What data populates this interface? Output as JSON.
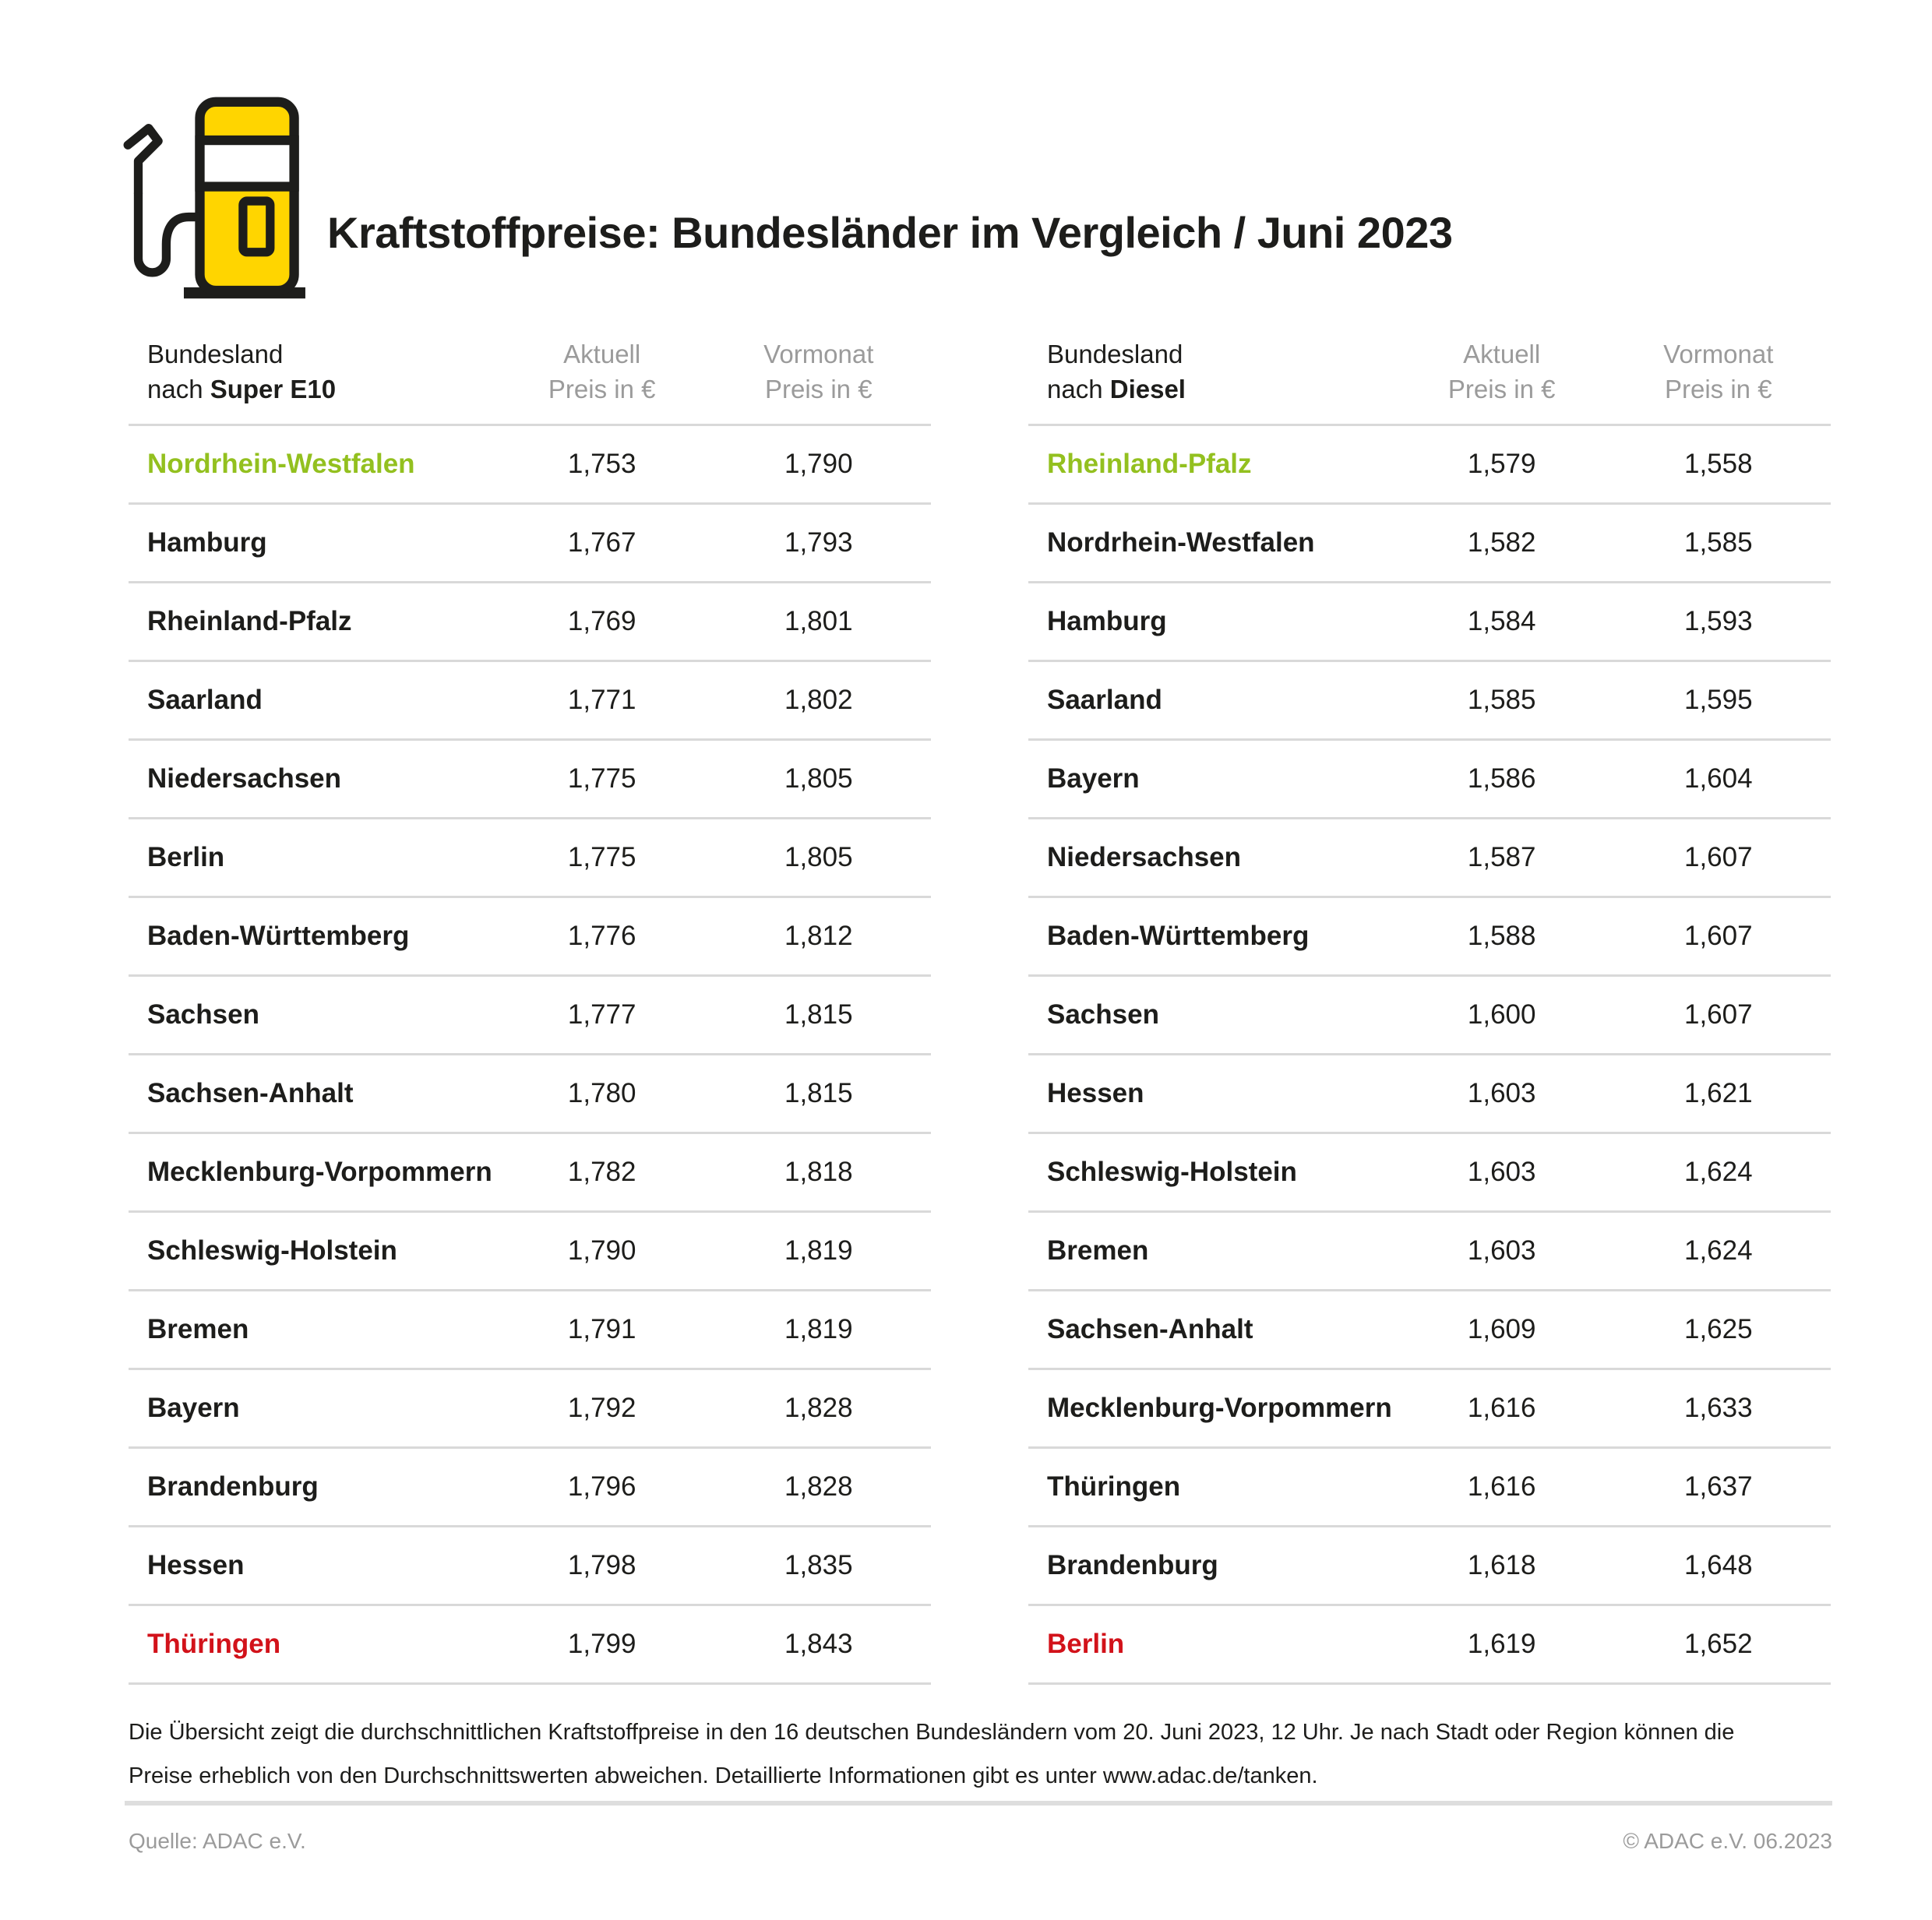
{
  "header": {
    "title": "Kraftstoffpreise: Bundesländer im Vergleich / Juni 2023",
    "icon": "fuel-pump-icon"
  },
  "colors": {
    "green": "#93c01f",
    "red": "#d2121a",
    "gray": "#9b9b9b",
    "divider": "#d9d9d9",
    "divider2": "#dedede",
    "yellow": "#ffd500",
    "ink": "#1d1d1b"
  },
  "tables": [
    {
      "head": {
        "col1_line1": "Bundesland",
        "col1_line2_prefix": "nach ",
        "col1_line2_bold": "Super E10",
        "col2_line1": "Aktuell",
        "col2_line2": "Preis in €",
        "col3_line1": "Vormonat",
        "col3_line2": "Preis in €"
      },
      "rows": [
        {
          "state": "Nordrhein-Westfalen",
          "aktuell": "1,753",
          "vormonat": "1,790",
          "color": "green"
        },
        {
          "state": "Hamburg",
          "aktuell": "1,767",
          "vormonat": "1,793",
          "color": ""
        },
        {
          "state": "Rheinland-Pfalz",
          "aktuell": "1,769",
          "vormonat": "1,801",
          "color": ""
        },
        {
          "state": "Saarland",
          "aktuell": "1,771",
          "vormonat": "1,802",
          "color": ""
        },
        {
          "state": "Niedersachsen",
          "aktuell": "1,775",
          "vormonat": "1,805",
          "color": ""
        },
        {
          "state": "Berlin",
          "aktuell": "1,775",
          "vormonat": "1,805",
          "color": ""
        },
        {
          "state": "Baden-Württemberg",
          "aktuell": "1,776",
          "vormonat": "1,812",
          "color": ""
        },
        {
          "state": "Sachsen",
          "aktuell": "1,777",
          "vormonat": "1,815",
          "color": ""
        },
        {
          "state": "Sachsen-Anhalt",
          "aktuell": "1,780",
          "vormonat": "1,815",
          "color": ""
        },
        {
          "state": "Mecklenburg-Vorpommern",
          "aktuell": "1,782",
          "vormonat": "1,818",
          "color": ""
        },
        {
          "state": "Schleswig-Holstein",
          "aktuell": "1,790",
          "vormonat": "1,819",
          "color": ""
        },
        {
          "state": "Bremen",
          "aktuell": "1,791",
          "vormonat": "1,819",
          "color": ""
        },
        {
          "state": "Bayern",
          "aktuell": "1,792",
          "vormonat": "1,828",
          "color": ""
        },
        {
          "state": "Brandenburg",
          "aktuell": "1,796",
          "vormonat": "1,828",
          "color": ""
        },
        {
          "state": "Hessen",
          "aktuell": "1,798",
          "vormonat": "1,835",
          "color": ""
        },
        {
          "state": "Thüringen",
          "aktuell": "1,799",
          "vormonat": "1,843",
          "color": "red"
        }
      ]
    },
    {
      "head": {
        "col1_line1": "Bundesland",
        "col1_line2_prefix": "nach ",
        "col1_line2_bold": "Diesel",
        "col2_line1": "Aktuell",
        "col2_line2": "Preis in €",
        "col3_line1": "Vormonat",
        "col3_line2": "Preis in €"
      },
      "rows": [
        {
          "state": "Rheinland-Pfalz",
          "aktuell": "1,579",
          "vormonat": "1,558",
          "color": "green"
        },
        {
          "state": "Nordrhein-Westfalen",
          "aktuell": "1,582",
          "vormonat": "1,585",
          "color": ""
        },
        {
          "state": "Hamburg",
          "aktuell": "1,584",
          "vormonat": "1,593",
          "color": ""
        },
        {
          "state": "Saarland",
          "aktuell": "1,585",
          "vormonat": "1,595",
          "color": ""
        },
        {
          "state": "Bayern",
          "aktuell": "1,586",
          "vormonat": "1,604",
          "color": ""
        },
        {
          "state": "Niedersachsen",
          "aktuell": "1,587",
          "vormonat": "1,607",
          "color": ""
        },
        {
          "state": "Baden-Württemberg",
          "aktuell": "1,588",
          "vormonat": "1,607",
          "color": ""
        },
        {
          "state": "Sachsen",
          "aktuell": "1,600",
          "vormonat": "1,607",
          "color": ""
        },
        {
          "state": "Hessen",
          "aktuell": "1,603",
          "vormonat": "1,621",
          "color": ""
        },
        {
          "state": "Schleswig-Holstein",
          "aktuell": "1,603",
          "vormonat": "1,624",
          "color": ""
        },
        {
          "state": "Bremen",
          "aktuell": "1,603",
          "vormonat": "1,624",
          "color": ""
        },
        {
          "state": "Sachsen-Anhalt",
          "aktuell": "1,609",
          "vormonat": "1,625",
          "color": ""
        },
        {
          "state": "Mecklenburg-Vorpommern",
          "aktuell": "1,616",
          "vormonat": "1,633",
          "color": ""
        },
        {
          "state": "Thüringen",
          "aktuell": "1,616",
          "vormonat": "1,637",
          "color": ""
        },
        {
          "state": "Brandenburg",
          "aktuell": "1,618",
          "vormonat": "1,648",
          "color": ""
        },
        {
          "state": "Berlin",
          "aktuell": "1,619",
          "vormonat": "1,652",
          "color": "red"
        }
      ]
    }
  ],
  "chart_data": [
    {
      "type": "table",
      "title": "Bundesland nach Super E10",
      "columns": [
        "Bundesland",
        "Aktuell Preis in €",
        "Vormonat Preis in €"
      ],
      "rows": [
        [
          "Nordrhein-Westfalen",
          "1,753",
          "1,790"
        ],
        [
          "Hamburg",
          "1,767",
          "1,793"
        ],
        [
          "Rheinland-Pfalz",
          "1,769",
          "1,801"
        ],
        [
          "Saarland",
          "1,771",
          "1,802"
        ],
        [
          "Niedersachsen",
          "1,775",
          "1,805"
        ],
        [
          "Berlin",
          "1,775",
          "1,805"
        ],
        [
          "Baden-Württemberg",
          "1,776",
          "1,812"
        ],
        [
          "Sachsen",
          "1,777",
          "1,815"
        ],
        [
          "Sachsen-Anhalt",
          "1,780",
          "1,815"
        ],
        [
          "Mecklenburg-Vorpommern",
          "1,782",
          "1,818"
        ],
        [
          "Schleswig-Holstein",
          "1,790",
          "1,819"
        ],
        [
          "Bremen",
          "1,791",
          "1,819"
        ],
        [
          "Bayern",
          "1,792",
          "1,828"
        ],
        [
          "Brandenburg",
          "1,796",
          "1,828"
        ],
        [
          "Hessen",
          "1,798",
          "1,835"
        ],
        [
          "Thüringen",
          "1,799",
          "1,843"
        ]
      ],
      "highlight_green_cheapest": "Nordrhein-Westfalen",
      "highlight_red_most_expensive": "Thüringen"
    },
    {
      "type": "table",
      "title": "Bundesland nach Diesel",
      "columns": [
        "Bundesland",
        "Aktuell Preis in €",
        "Vormonat Preis in €"
      ],
      "rows": [
        [
          "Rheinland-Pfalz",
          "1,579",
          "1,558"
        ],
        [
          "Nordrhein-Westfalen",
          "1,582",
          "1,585"
        ],
        [
          "Hamburg",
          "1,584",
          "1,593"
        ],
        [
          "Saarland",
          "1,585",
          "1,595"
        ],
        [
          "Bayern",
          "1,586",
          "1,604"
        ],
        [
          "Niedersachsen",
          "1,587",
          "1,607"
        ],
        [
          "Baden-Württemberg",
          "1,588",
          "1,607"
        ],
        [
          "Sachsen",
          "1,600",
          "1,607"
        ],
        [
          "Hessen",
          "1,603",
          "1,621"
        ],
        [
          "Schleswig-Holstein",
          "1,603",
          "1,624"
        ],
        [
          "Bremen",
          "1,603",
          "1,624"
        ],
        [
          "Sachsen-Anhalt",
          "1,609",
          "1,625"
        ],
        [
          "Mecklenburg-Vorpommern",
          "1,616",
          "1,633"
        ],
        [
          "Thüringen",
          "1,616",
          "1,637"
        ],
        [
          "Brandenburg",
          "1,618",
          "1,648"
        ],
        [
          "Berlin",
          "1,619",
          "1,652"
        ]
      ],
      "highlight_green_cheapest": "Rheinland-Pfalz",
      "highlight_red_most_expensive": "Berlin"
    }
  ],
  "footnote": {
    "line1": "Die Übersicht zeigt die durchschnittlichen Kraftstoffpreise in den 16 deutschen Bundesländern vom 20. Juni 2023, 12 Uhr. Je nach Stadt oder Region können die",
    "line2": "Preise erheblich von den Durchschnittswerten abweichen. Detaillierte Informationen gibt es unter www.adac.de/tanken."
  },
  "footer": {
    "source": "Quelle: ADAC e.V.",
    "copyright": "© ADAC e.V. 06.2023"
  }
}
